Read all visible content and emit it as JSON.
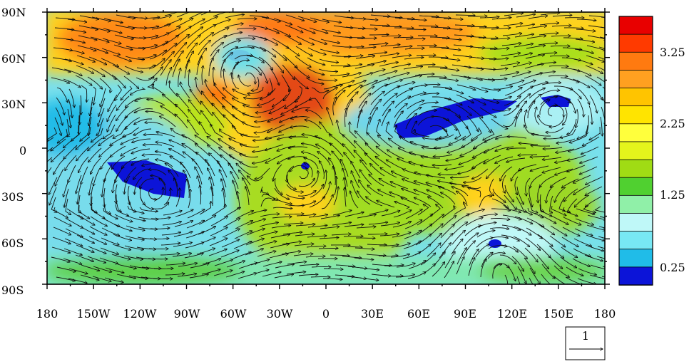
{
  "map": {
    "y_labels": [
      "90N",
      "60N",
      "30N",
      "0",
      "30S",
      "60S",
      "90S"
    ],
    "x_labels": [
      "180",
      "150W",
      "120W",
      "90W",
      "60W",
      "30W",
      "0",
      "30E",
      "60E",
      "90E",
      "120E",
      "150E",
      "180"
    ]
  },
  "colorbar": {
    "labels": [
      "3.25",
      "2.25",
      "1.25",
      "0.25"
    ],
    "colors": [
      "#e80000",
      "#ff3a00",
      "#ff7a10",
      "#ffa020",
      "#ffc400",
      "#ffe400",
      "#ffff3c",
      "#e4f41c",
      "#a0dc14",
      "#50d030",
      "#90f0a8",
      "#bff8f8",
      "#78e8f4",
      "#20bce8",
      "#0c14d8"
    ]
  },
  "reference_vector": {
    "label": "1"
  }
}
